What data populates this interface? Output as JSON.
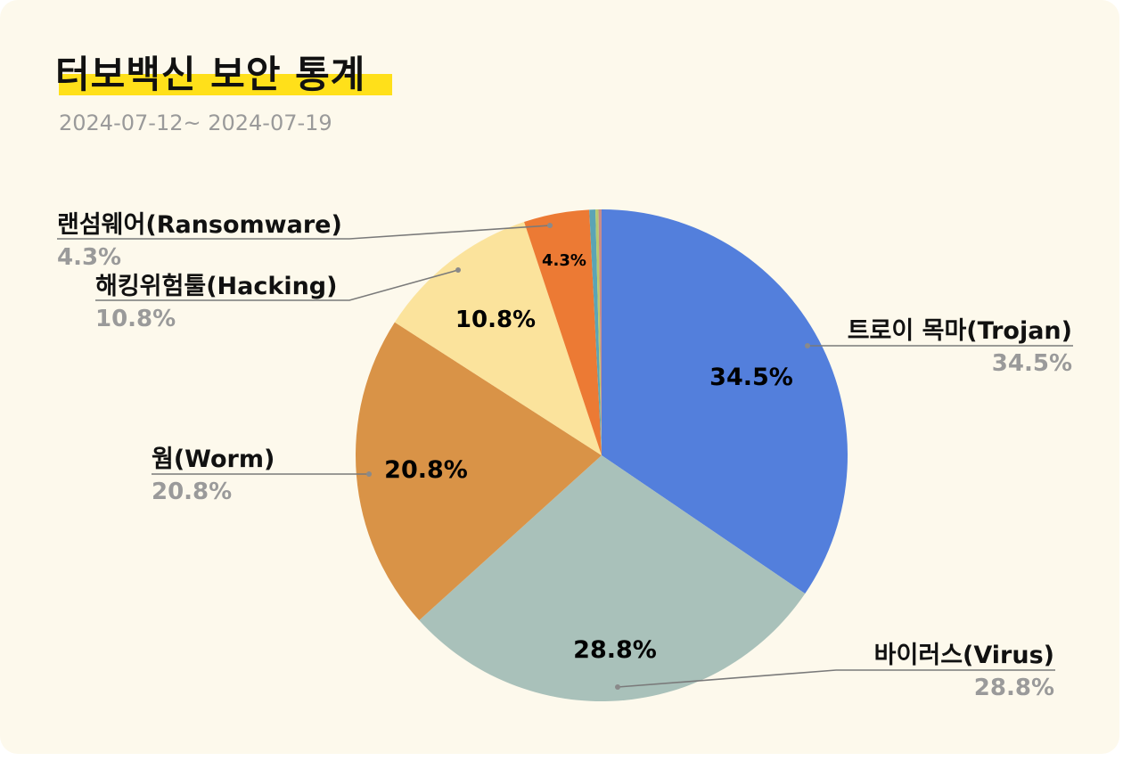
{
  "header": {
    "title": "터보백신 보안 통계",
    "date_range": "2024-07-12~ 2024-07-19"
  },
  "colors": {
    "background": "#fdf9ec",
    "highlight": "#ffe01a",
    "callout_line": "#7a7a7a"
  },
  "chart_data": {
    "type": "pie",
    "title": "터보백신 보안 통계",
    "subtitle": "2024-07-12~ 2024-07-19",
    "slices": [
      {
        "label": "트로이 목마(Trojan)",
        "value": 34.5,
        "pct_label": "34.5%",
        "color": "#537fdc"
      },
      {
        "label": "바이러스(Virus)",
        "value": 28.8,
        "pct_label": "28.8%",
        "color": "#a9c1ba"
      },
      {
        "label": "웜(Worm)",
        "value": 20.8,
        "pct_label": "20.8%",
        "color": "#d99347"
      },
      {
        "label": "해킹위험툴(Hacking)",
        "value": 10.8,
        "pct_label": "10.8%",
        "color": "#fbe39c"
      },
      {
        "label": "랜섬웨어(Ransomware)",
        "value": 4.3,
        "pct_label": "4.3%",
        "color": "#ec7a34"
      },
      {
        "label": "",
        "value": 0.4,
        "pct_label": "",
        "color": "#5ba4b5"
      },
      {
        "label": "",
        "value": 0.2,
        "pct_label": "",
        "color": "#b7c96f"
      },
      {
        "label": "",
        "value": 0.2,
        "pct_label": "",
        "color": "#c78a8a"
      }
    ],
    "start_angle": "12 o'clock",
    "direction": "clockwise",
    "legend": "callout labels"
  }
}
